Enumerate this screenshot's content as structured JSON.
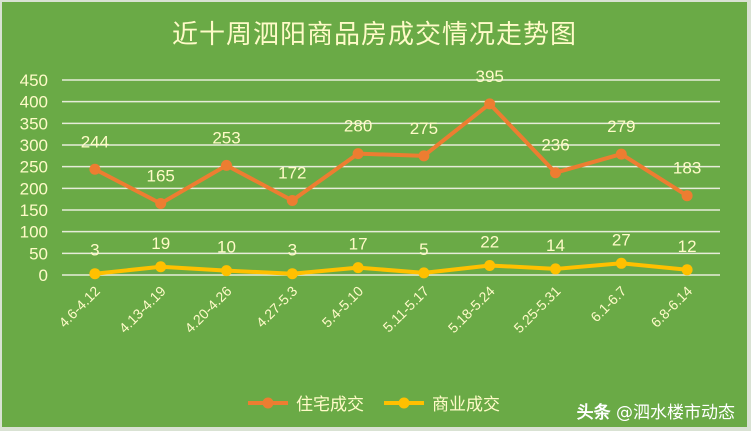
{
  "chart_data": {
    "type": "line",
    "title": "近十周泗阳商品房成交情况走势图",
    "xlabel": "",
    "ylabel": "",
    "ylim": [
      0,
      450
    ],
    "yticks": [
      0,
      50,
      100,
      150,
      200,
      250,
      300,
      350,
      400,
      450
    ],
    "grid": true,
    "legend_position": "bottom",
    "categories": [
      "4.6-4.12",
      "4.13-4.19",
      "4.20-4.26",
      "4.27-5.3",
      "5.4-5.10",
      "5.11-5.17",
      "5.18-5.24",
      "5.25-5.31",
      "6.1-6.7",
      "6.8-6.14"
    ],
    "series": [
      {
        "name": "住宅成交",
        "color": "#ed7d31",
        "values": [
          244,
          165,
          253,
          172,
          280,
          275,
          395,
          236,
          279,
          183
        ]
      },
      {
        "name": "商业成交",
        "color": "#ffc000",
        "values": [
          3,
          19,
          10,
          3,
          17,
          5,
          22,
          14,
          27,
          12
        ]
      }
    ]
  },
  "colors": {
    "background": "#6aaa46",
    "text": "#fffbc8",
    "grid": "#e6ecd9"
  },
  "watermark": {
    "prefix": "头条",
    "handle": "@泗水楼市动态"
  }
}
